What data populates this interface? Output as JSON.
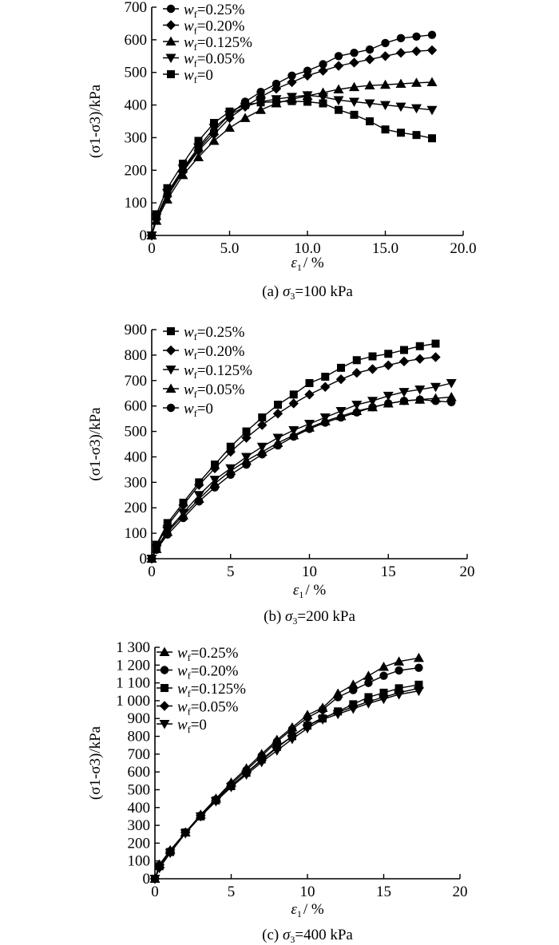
{
  "chart_data": [
    {
      "type": "line",
      "caption_prefix": "(a) ",
      "caption_symbol": "σ",
      "caption_sub": "3",
      "caption_value": "=100 kPa",
      "xlabel_symbol": "ε",
      "xlabel_sub": "1",
      "xlabel_unit": "/ %",
      "ylabel": "(σ1-σ3)/kPa",
      "xlim": [
        0,
        20
      ],
      "ylim": [
        0,
        700
      ],
      "xticks": [
        0,
        5,
        10,
        15,
        20
      ],
      "xtick_labels": [
        "0",
        "5.0",
        "10.0",
        "15.0",
        "20.0"
      ],
      "yticks": [
        0,
        100,
        200,
        300,
        400,
        500,
        600,
        700
      ],
      "ytick_labels": [
        "0",
        "100",
        "200",
        "300",
        "400",
        "500",
        "600",
        "700"
      ],
      "legend_position": "top-left",
      "series": [
        {
          "name": "wf=0.25%",
          "label_value": "=0.25%",
          "marker": "circle",
          "x": [
            0,
            0.3,
            1,
            2,
            3,
            4,
            5,
            6,
            7,
            8,
            9,
            10,
            11,
            12,
            13,
            14,
            15,
            16,
            17,
            18
          ],
          "y": [
            0,
            55,
            125,
            200,
            265,
            320,
            370,
            410,
            440,
            465,
            490,
            505,
            525,
            550,
            560,
            570,
            590,
            605,
            610,
            615
          ]
        },
        {
          "name": "wf=0.20%",
          "label_value": "=0.20%",
          "marker": "diamond",
          "x": [
            0,
            0.3,
            1,
            2,
            3,
            4,
            5,
            6,
            7,
            8,
            9,
            10,
            11,
            12,
            13,
            14,
            15,
            16,
            17,
            18
          ],
          "y": [
            0,
            50,
            120,
            195,
            260,
            310,
            360,
            395,
            425,
            450,
            470,
            490,
            505,
            520,
            530,
            540,
            550,
            560,
            565,
            568
          ]
        },
        {
          "name": "wf=0.125%",
          "label_value": "=0.125%",
          "marker": "triangle-up",
          "x": [
            0,
            0.3,
            1,
            2,
            3,
            4,
            5,
            6,
            7,
            8,
            9,
            10,
            11,
            12,
            13,
            14,
            15,
            16,
            17,
            18
          ],
          "y": [
            0,
            45,
            110,
            185,
            240,
            290,
            330,
            360,
            385,
            405,
            418,
            428,
            438,
            448,
            455,
            460,
            462,
            465,
            468,
            470
          ]
        },
        {
          "name": "wf=0.05%",
          "label_value": "=0.05%",
          "marker": "triangle-down",
          "x": [
            0,
            0.3,
            1,
            2,
            3,
            4,
            5,
            6,
            7,
            8,
            9,
            10,
            11,
            12,
            13,
            14,
            15,
            16,
            17,
            18
          ],
          "y": [
            0,
            55,
            130,
            205,
            270,
            330,
            370,
            395,
            410,
            418,
            425,
            430,
            425,
            415,
            410,
            405,
            400,
            395,
            390,
            385
          ]
        },
        {
          "name": "wf=0",
          "label_value": "=0",
          "marker": "square",
          "x": [
            0,
            0.3,
            1,
            2,
            3,
            4,
            5,
            6,
            7,
            8,
            9,
            10,
            11,
            12,
            13,
            14,
            15,
            16,
            17,
            18
          ],
          "y": [
            0,
            65,
            145,
            220,
            290,
            345,
            380,
            400,
            408,
            410,
            412,
            410,
            405,
            385,
            370,
            350,
            325,
            315,
            308,
            298
          ]
        }
      ]
    },
    {
      "type": "line",
      "caption_prefix": "(b) ",
      "caption_symbol": "σ",
      "caption_sub": "3",
      "caption_value": "=200 kPa",
      "xlabel_symbol": "ε",
      "xlabel_sub": "1",
      "xlabel_unit": "/ %",
      "ylabel": "(σ1-σ3)/kPa",
      "xlim": [
        0,
        20
      ],
      "ylim": [
        0,
        900
      ],
      "xticks": [
        0,
        5,
        10,
        15,
        20
      ],
      "xtick_labels": [
        "0",
        "5",
        "10",
        "15",
        "20"
      ],
      "yticks": [
        0,
        100,
        200,
        300,
        400,
        500,
        600,
        700,
        800,
        900
      ],
      "ytick_labels": [
        "0",
        "100",
        "200",
        "300",
        "400",
        "500",
        "600",
        "700",
        "800",
        "900"
      ],
      "legend_position": "top-left",
      "series": [
        {
          "name": "wf=0.25%",
          "label_value": "=0.25%",
          "marker": "square",
          "x": [
            0,
            0.3,
            1,
            2,
            3,
            4,
            5,
            6,
            7,
            8,
            9,
            10,
            11,
            12,
            13,
            14,
            15,
            16,
            17,
            18
          ],
          "y": [
            0,
            55,
            140,
            220,
            300,
            370,
            440,
            500,
            555,
            605,
            645,
            690,
            715,
            750,
            780,
            795,
            805,
            820,
            835,
            845
          ]
        },
        {
          "name": "wf=0.20%",
          "label_value": "=0.20%",
          "marker": "diamond",
          "x": [
            0,
            0.3,
            1,
            2,
            3,
            4,
            5,
            6,
            7,
            8,
            9,
            10,
            11,
            12,
            13,
            14,
            15,
            16,
            17,
            18
          ],
          "y": [
            0,
            50,
            130,
            210,
            290,
            355,
            420,
            475,
            525,
            570,
            610,
            645,
            675,
            705,
            730,
            745,
            760,
            775,
            785,
            792
          ]
        },
        {
          "name": "wf=0.125%",
          "label_value": "=0.125%",
          "marker": "triangle-down",
          "x": [
            0,
            0.3,
            1,
            2,
            3,
            4,
            5,
            6,
            7,
            8,
            9,
            10,
            11,
            12,
            13,
            14,
            15,
            16,
            17,
            18,
            19
          ],
          "y": [
            0,
            40,
            110,
            180,
            250,
            310,
            355,
            400,
            440,
            475,
            505,
            530,
            555,
            580,
            605,
            620,
            640,
            655,
            665,
            675,
            690
          ]
        },
        {
          "name": "wf=0.05%",
          "label_value": "=0.05%",
          "marker": "triangle-up",
          "x": [
            0,
            0.3,
            1,
            2,
            3,
            4,
            5,
            6,
            7,
            8,
            9,
            10,
            11,
            12,
            13,
            14,
            15,
            16,
            17,
            18,
            19
          ],
          "y": [
            0,
            38,
            105,
            170,
            235,
            295,
            345,
            385,
            420,
            455,
            485,
            515,
            540,
            560,
            580,
            595,
            610,
            620,
            625,
            630,
            635
          ]
        },
        {
          "name": "wf=0",
          "label_value": "=0",
          "marker": "circle",
          "x": [
            0,
            0.3,
            1,
            2,
            3,
            4,
            5,
            6,
            7,
            8,
            9,
            10,
            11,
            12,
            13,
            14,
            15,
            16,
            17,
            18,
            19
          ],
          "y": [
            0,
            35,
            95,
            160,
            225,
            280,
            330,
            370,
            410,
            445,
            480,
            510,
            535,
            555,
            575,
            595,
            610,
            620,
            625,
            620,
            615
          ]
        }
      ]
    },
    {
      "type": "line",
      "caption_prefix": "(c) ",
      "caption_symbol": "σ",
      "caption_sub": "3",
      "caption_value": "=400 kPa",
      "xlabel_symbol": "ε",
      "xlabel_sub": "1",
      "xlabel_unit": "/ %",
      "ylabel": "(σ1-σ3)/kPa",
      "xlim": [
        0,
        20
      ],
      "ylim": [
        0,
        1300
      ],
      "xticks": [
        0,
        5,
        10,
        15,
        20
      ],
      "xtick_labels": [
        "0",
        "5",
        "10",
        "15",
        "20"
      ],
      "yticks": [
        0,
        100,
        200,
        300,
        400,
        500,
        600,
        700,
        800,
        900,
        1000,
        1100,
        1200,
        1300
      ],
      "ytick_labels": [
        "0",
        "100",
        "200",
        "300",
        "400",
        "500",
        "600",
        "700",
        "800",
        "900",
        "1 000",
        "1 100",
        "1 200",
        "1 300"
      ],
      "legend_position": "top-left",
      "series": [
        {
          "name": "wf=0.25%",
          "label_value": "=0.25%",
          "marker": "triangle-up",
          "x": [
            0,
            0.3,
            1,
            2,
            3,
            4,
            5,
            6,
            7,
            8,
            9,
            10,
            11,
            12,
            13,
            14,
            15,
            16,
            17.3
          ],
          "y": [
            0,
            80,
            160,
            260,
            360,
            450,
            540,
            620,
            700,
            780,
            850,
            920,
            960,
            1040,
            1090,
            1140,
            1190,
            1220,
            1240
          ]
        },
        {
          "name": "wf=0.20%",
          "label_value": "=0.20%",
          "marker": "circle",
          "x": [
            0,
            0.3,
            1,
            2,
            3,
            4,
            5,
            6,
            7,
            8,
            9,
            10,
            11,
            12,
            13,
            14,
            15,
            16,
            17.3
          ],
          "y": [
            0,
            75,
            155,
            260,
            355,
            445,
            530,
            610,
            690,
            770,
            840,
            905,
            950,
            1020,
            1060,
            1100,
            1140,
            1170,
            1185
          ]
        },
        {
          "name": "wf=0.125%",
          "label_value": "=0.125%",
          "marker": "square",
          "x": [
            0,
            0.3,
            1,
            2,
            3,
            4,
            5,
            6,
            7,
            8,
            9,
            10,
            11,
            12,
            13,
            14,
            15,
            16,
            17.3
          ],
          "y": [
            0,
            70,
            150,
            260,
            350,
            440,
            520,
            595,
            670,
            740,
            800,
            860,
            900,
            940,
            980,
            1020,
            1045,
            1070,
            1090
          ]
        },
        {
          "name": "wf=0.05%",
          "label_value": "=0.05%",
          "marker": "diamond",
          "x": [
            0,
            0.3,
            1,
            2,
            3,
            4,
            5,
            6,
            7,
            8,
            9,
            10,
            11,
            12,
            13,
            14,
            15,
            16,
            17.3
          ],
          "y": [
            0,
            65,
            150,
            260,
            355,
            440,
            520,
            595,
            665,
            735,
            800,
            860,
            905,
            935,
            965,
            995,
            1020,
            1045,
            1070
          ]
        },
        {
          "name": "wf=0",
          "label_value": "=0",
          "marker": "triangle-down",
          "x": [
            0,
            0.3,
            1,
            2,
            3,
            4,
            5,
            6,
            7,
            8,
            9,
            10,
            11,
            12,
            13,
            14,
            15,
            16,
            17.3
          ],
          "y": [
            0,
            60,
            145,
            255,
            350,
            435,
            515,
            585,
            655,
            720,
            785,
            845,
            895,
            925,
            955,
            985,
            1010,
            1035,
            1055
          ]
        }
      ]
    }
  ]
}
